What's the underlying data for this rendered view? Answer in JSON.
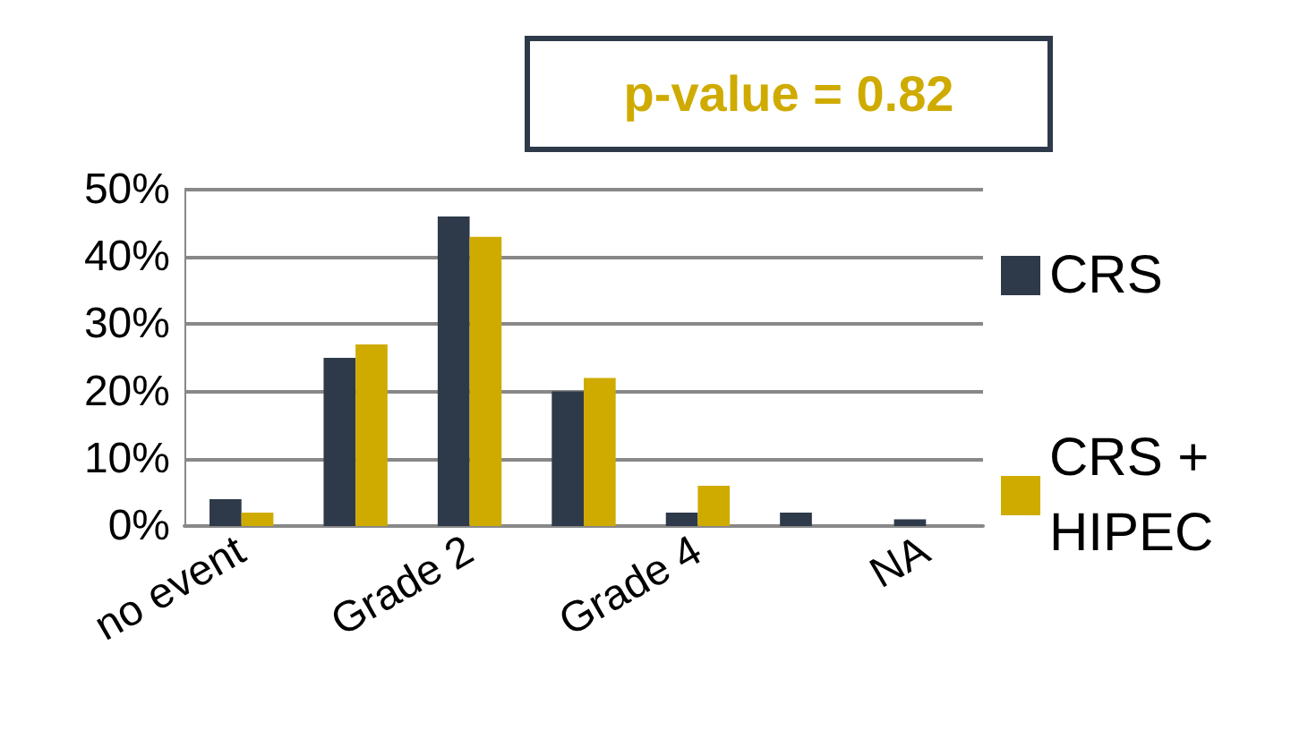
{
  "chart_data": {
    "type": "bar",
    "annotations": [
      "p-value = 0.82"
    ],
    "categories": [
      "no event",
      null,
      "Grade 2",
      null,
      "Grade 4",
      null,
      "NA"
    ],
    "series": [
      {
        "name": "CRS",
        "color": "#2e3a4a",
        "values": [
          4,
          25,
          46,
          20,
          2,
          2,
          1
        ]
      },
      {
        "name": "CRS + HIPEC",
        "color": "#cfab00",
        "values": [
          2,
          27,
          43,
          22,
          6,
          0,
          0
        ]
      }
    ],
    "ylim": [
      0,
      50
    ],
    "yticks": [
      {
        "value": 0,
        "label": "0%"
      },
      {
        "value": 10,
        "label": "10%"
      },
      {
        "value": 20,
        "label": "20%"
      },
      {
        "value": 30,
        "label": "30%"
      },
      {
        "value": 40,
        "label": "40%"
      },
      {
        "value": 50,
        "label": "50%"
      }
    ],
    "grid": "y",
    "legend": "right"
  }
}
